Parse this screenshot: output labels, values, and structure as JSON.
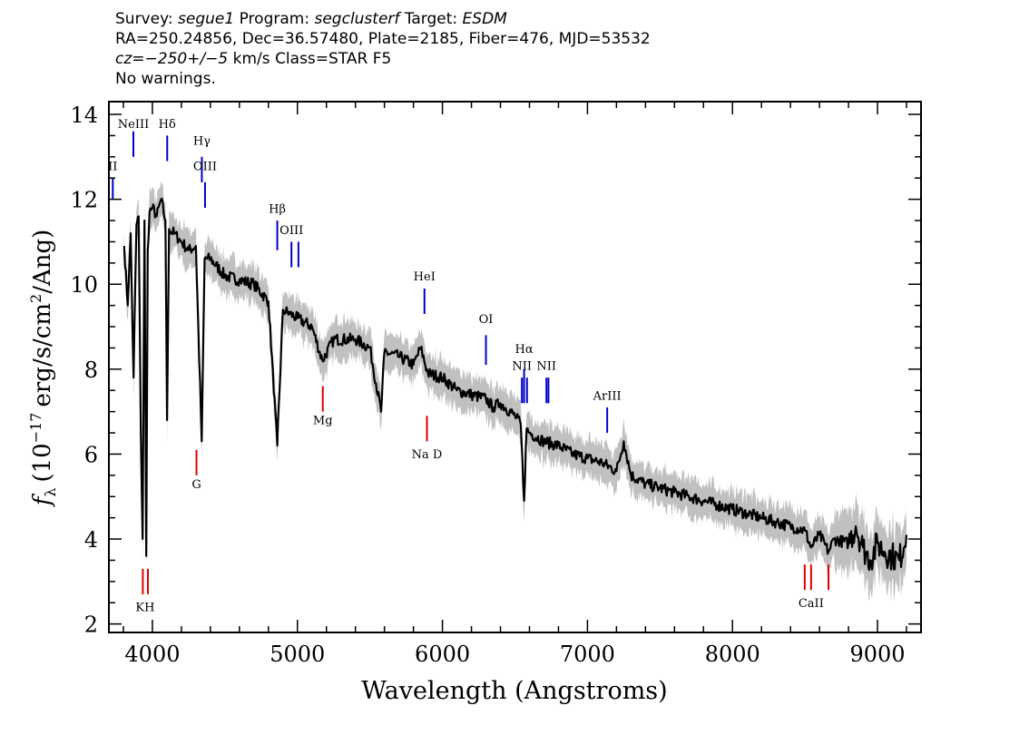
{
  "header": {
    "survey_label": "Survey:",
    "survey": "segue1",
    "program_label": "Program:",
    "program": "segclusterf",
    "target_label": "Target:",
    "target": "ESDM",
    "line2": "RA=250.24856, Dec=36.57480, Plate=2185, Fiber=476, MJD=53532",
    "cz_label": "cz",
    "cz_value": "=−250+/−5",
    "cz_units": "km/s",
    "class": "Class=STAR F5",
    "warnings": "No warnings."
  },
  "chart_data": {
    "type": "line",
    "title": "",
    "xlabel": "Wavelength (Angstroms)",
    "ylabel_prefix": "f",
    "ylabel_sub": "λ",
    "ylabel_open": "(10",
    "ylabel_exp": "−17",
    "ylabel_mid": "erg/s/cm",
    "ylabel_exp2": "2",
    "ylabel_end": "/Ang)",
    "xlim": [
      3700,
      9300
    ],
    "ylim": [
      1.8,
      14.3
    ],
    "xticks": [
      4000,
      5000,
      6000,
      7000,
      8000,
      9000
    ],
    "yticks": [
      2,
      4,
      6,
      8,
      10,
      12,
      14
    ],
    "grid": false,
    "colors": {
      "flux": "#000000",
      "error_band": "#c0c0c0",
      "emission": "#0000cc",
      "absorption": "#dd0000"
    },
    "series": [
      {
        "name": "",
        "x": [
          3805,
          3830,
          3850,
          3870,
          3890,
          3905,
          3920,
          3933,
          3945,
          3958,
          3968,
          3980,
          4000,
          4030,
          4060,
          4090,
          4101,
          4115,
          4150,
          4200,
          4250,
          4300,
          4340,
          4360,
          4400,
          4500,
          4600,
          4700,
          4800,
          4861,
          4900,
          4950,
          5000,
          5100,
          5172,
          5250,
          5400,
          5500,
          5577,
          5600,
          5700,
          5800,
          5850,
          5900,
          6000,
          6100,
          6200,
          6300,
          6350,
          6400,
          6500,
          6540,
          6563,
          6580,
          6600,
          6700,
          6800,
          6900,
          7000,
          7100,
          7200,
          7250,
          7300,
          7400,
          7500,
          7600,
          7700,
          7800,
          7900,
          8000,
          8100,
          8200,
          8300,
          8400,
          8500,
          8542,
          8600,
          8662,
          8700,
          8800,
          8850,
          8900,
          8950,
          9000,
          9050,
          9100,
          9150,
          9200
        ],
        "values": [
          10.9,
          9.5,
          11.2,
          7.8,
          11.4,
          11.6,
          6.5,
          4.0,
          11.5,
          3.6,
          10.8,
          11.7,
          11.8,
          11.6,
          12.0,
          11.5,
          6.8,
          11.3,
          11.2,
          11.0,
          10.8,
          10.9,
          6.3,
          10.6,
          10.6,
          10.2,
          10.1,
          10.0,
          9.6,
          6.2,
          9.4,
          9.3,
          9.2,
          9.0,
          8.2,
          8.7,
          8.7,
          8.5,
          7.0,
          8.4,
          8.3,
          8.1,
          8.5,
          7.9,
          7.8,
          7.5,
          7.4,
          7.3,
          7.1,
          7.2,
          6.9,
          6.7,
          4.9,
          6.6,
          6.5,
          6.3,
          6.2,
          6.0,
          5.9,
          5.8,
          5.6,
          6.3,
          5.5,
          5.3,
          5.2,
          5.1,
          5.0,
          4.9,
          4.8,
          4.7,
          4.6,
          4.5,
          4.4,
          4.3,
          4.2,
          3.8,
          4.1,
          3.7,
          4.0,
          3.9,
          4.3,
          3.8,
          3.5,
          3.9,
          3.7,
          3.6,
          3.5,
          4.1
        ]
      }
    ],
    "emission_lines": [
      {
        "label": "II",
        "x": 3727,
        "label_y": 12.6,
        "line_top": 12.5,
        "line_bottom": 12.0
      },
      {
        "label": "NeIII",
        "x": 3869,
        "label_y": 13.6,
        "line_top": 13.6,
        "line_bottom": 13.0
      },
      {
        "label": "Hδ",
        "x": 4102,
        "label_y": 13.6,
        "line_top": 13.5,
        "line_bottom": 12.9
      },
      {
        "label": "Hγ",
        "x": 4341,
        "label_y": 13.2,
        "line_top": 13.0,
        "line_bottom": 12.4
      },
      {
        "label": "OIII",
        "x": 4363,
        "label_y": 12.6,
        "line_top": 12.4,
        "line_bottom": 11.8
      },
      {
        "label": "Hβ",
        "x": 4861,
        "label_y": 11.6,
        "line_top": 11.5,
        "line_bottom": 10.8
      },
      {
        "label": "OIII",
        "x": 4959,
        "label_y": 11.1,
        "line_top": 11.0,
        "line_bottom": 10.4
      },
      {
        "label": "",
        "x": 5007,
        "label_y": 11.1,
        "line_top": 11.0,
        "line_bottom": 10.4
      },
      {
        "label": "HeI",
        "x": 5876,
        "label_y": 10.0,
        "line_top": 9.9,
        "line_bottom": 9.3
      },
      {
        "label": "OI",
        "x": 6300,
        "label_y": 9.0,
        "line_top": 8.8,
        "line_bottom": 8.1
      },
      {
        "label": "Hα",
        "x": 6563,
        "label_y": 8.3,
        "line_top": 8.0,
        "line_bottom": 7.2
      },
      {
        "label": "NII",
        "x": 6548,
        "label_y": 7.9,
        "line_top": 7.8,
        "line_bottom": 7.2
      },
      {
        "label": "",
        "x": 6583,
        "label_y": 7.9,
        "line_top": 7.8,
        "line_bottom": 7.2
      },
      {
        "label": "NII",
        "x": 6717,
        "label_y": 7.9,
        "line_top": 7.8,
        "line_bottom": 7.2
      },
      {
        "label": "",
        "x": 6731,
        "label_y": 7.9,
        "line_top": 7.8,
        "line_bottom": 7.2
      },
      {
        "label": "ArIII",
        "x": 7136,
        "label_y": 7.2,
        "line_top": 7.1,
        "line_bottom": 6.5
      }
    ],
    "absorption_lines": [
      {
        "label": "G",
        "x": 4304,
        "line_top": 6.1,
        "line_bottom": 5.5,
        "label_y": 5.2
      },
      {
        "label": "Mg",
        "x": 5175,
        "line_top": 7.6,
        "line_bottom": 7.0,
        "label_y": 6.7
      },
      {
        "label": "Na D",
        "x": 5893,
        "line_top": 6.9,
        "line_bottom": 6.3,
        "label_y": 5.9
      },
      {
        "label": "KH",
        "x": 3950,
        "line_top": 3.3,
        "line_bottom": 2.7,
        "label_y": 2.3,
        "ticks": [
          3934,
          3969
        ]
      },
      {
        "label": "CaII",
        "x": 8542,
        "line_top": 3.4,
        "line_bottom": 2.8,
        "label_y": 2.4,
        "ticks": [
          8498,
          8542,
          8662
        ]
      }
    ]
  }
}
